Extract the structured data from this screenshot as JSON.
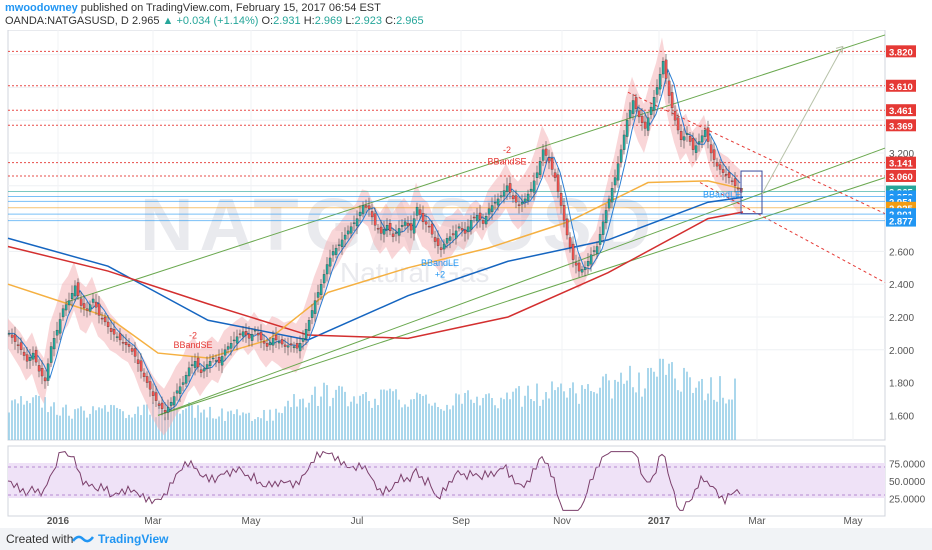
{
  "header": {
    "author": "mwoodowney",
    "published": "published on TradingView.com, February 15, 2017 06:54 EST",
    "symbol": "OANDA:NATGASUSD, D",
    "price": "2.965",
    "change": "+0.034 (+1.14%)",
    "o_label": "O:",
    "o_val": "2.931",
    "h_label": "H:",
    "h_val": "2.969",
    "l_label": "L:",
    "l_val": "2.923",
    "c_label": "C:",
    "c_val": "2.965"
  },
  "footer": {
    "created": "Created with",
    "brand": "TradingView",
    "logo_icon": "tradingview-logo-icon"
  },
  "watermark": {
    "symbol": "NATGASUSD",
    "name": "Natural Gas"
  },
  "colors": {
    "up": "#26a69a",
    "down": "#ef5350",
    "ema_blue": "#1565c0",
    "ma_red": "#d32f2f",
    "ma_orange": "#f5b041",
    "bb_fill": "#f4b5b8",
    "channel": "#6aa84f",
    "volume": "#8ecae6",
    "rsi": "#7b3f6b",
    "rsi_band": "#efe2f7",
    "hline": "#e53935",
    "price_tag": "#2196f3"
  },
  "chart_data": {
    "type": "candlestick",
    "symbol": "OANDA:NATGASUSD",
    "interval": "D",
    "last": {
      "open": 2.931,
      "high": 2.969,
      "low": 2.923,
      "close": 2.965
    },
    "ylim": [
      1.45,
      3.95
    ],
    "y_ticks": [
      "3.200",
      "2.600",
      "2.400",
      "2.200",
      "2.000",
      "1.800",
      "1.600"
    ],
    "x_ticks": [
      "2016",
      "Mar",
      "May",
      "Jul",
      "Sep",
      "Nov",
      "2017",
      "Mar",
      "May"
    ],
    "price_levels": [
      {
        "label": "3.820",
        "value": 3.82,
        "color": "#e53935"
      },
      {
        "label": "3.610",
        "value": 3.61,
        "color": "#e53935"
      },
      {
        "label": "3.461",
        "value": 3.461,
        "color": "#e53935"
      },
      {
        "label": "3.369",
        "value": 3.369,
        "color": "#e53935"
      },
      {
        "label": "3.141",
        "value": 3.141,
        "color": "#e53935"
      },
      {
        "label": "3.060",
        "value": 3.06,
        "color": "#e53935"
      },
      {
        "label": "2.965",
        "value": 2.965,
        "color": "#26a69a"
      },
      {
        "label": "2.958",
        "value": 2.935,
        "color": "#2196f3"
      },
      {
        "label": "2.951",
        "value": 2.905,
        "color": "#2196f3"
      },
      {
        "label": "2.925",
        "value": 2.866,
        "color": "#f39c12"
      },
      {
        "label": "2.901",
        "value": 2.827,
        "color": "#2196f3"
      },
      {
        "label": "2.877",
        "value": 2.788,
        "color": "#2196f3"
      }
    ],
    "close_path": [
      [
        0,
        2.1
      ],
      [
        6,
        2.05
      ],
      [
        12,
        2.0
      ],
      [
        18,
        1.93
      ],
      [
        24,
        1.98
      ],
      [
        30,
        1.87
      ],
      [
        36,
        1.81
      ],
      [
        42,
        2.02
      ],
      [
        48,
        2.12
      ],
      [
        54,
        2.25
      ],
      [
        60,
        2.3
      ],
      [
        66,
        2.39
      ],
      [
        72,
        2.27
      ],
      [
        78,
        2.24
      ],
      [
        84,
        2.31
      ],
      [
        90,
        2.21
      ],
      [
        96,
        2.17
      ],
      [
        102,
        2.11
      ],
      [
        108,
        2.08
      ],
      [
        114,
        2.04
      ],
      [
        120,
        2.02
      ],
      [
        126,
        1.96
      ],
      [
        132,
        1.87
      ],
      [
        138,
        1.8
      ],
      [
        144,
        1.72
      ],
      [
        150,
        1.66
      ],
      [
        156,
        1.62
      ],
      [
        162,
        1.68
      ],
      [
        168,
        1.75
      ],
      [
        174,
        1.8
      ],
      [
        180,
        1.89
      ],
      [
        186,
        1.93
      ],
      [
        192,
        1.86
      ],
      [
        198,
        1.91
      ],
      [
        204,
        1.95
      ],
      [
        210,
        1.92
      ],
      [
        216,
        2.0
      ],
      [
        222,
        2.04
      ],
      [
        228,
        2.08
      ],
      [
        234,
        2.11
      ],
      [
        240,
        2.07
      ],
      [
        246,
        2.12
      ],
      [
        252,
        2.06
      ],
      [
        258,
        2.02
      ],
      [
        264,
        2.07
      ],
      [
        270,
        2.05
      ],
      [
        276,
        2.02
      ],
      [
        282,
        2.03
      ],
      [
        288,
        2.01
      ],
      [
        294,
        2.07
      ],
      [
        300,
        2.18
      ],
      [
        306,
        2.3
      ],
      [
        312,
        2.4
      ],
      [
        318,
        2.52
      ],
      [
        324,
        2.6
      ],
      [
        330,
        2.64
      ],
      [
        336,
        2.7
      ],
      [
        342,
        2.75
      ],
      [
        348,
        2.8
      ],
      [
        354,
        2.88
      ],
      [
        360,
        2.86
      ],
      [
        366,
        2.76
      ],
      [
        372,
        2.71
      ],
      [
        378,
        2.76
      ],
      [
        384,
        2.69
      ],
      [
        390,
        2.74
      ],
      [
        396,
        2.78
      ],
      [
        402,
        2.73
      ],
      [
        408,
        2.87
      ],
      [
        414,
        2.78
      ],
      [
        420,
        2.75
      ],
      [
        426,
        2.66
      ],
      [
        432,
        2.61
      ],
      [
        438,
        2.68
      ],
      [
        444,
        2.7
      ],
      [
        450,
        2.75
      ],
      [
        456,
        2.71
      ],
      [
        462,
        2.79
      ],
      [
        468,
        2.82
      ],
      [
        474,
        2.77
      ],
      [
        480,
        2.86
      ],
      [
        486,
        2.9
      ],
      [
        492,
        2.94
      ],
      [
        498,
        3.0
      ],
      [
        504,
        2.92
      ],
      [
        510,
        2.88
      ],
      [
        516,
        2.92
      ],
      [
        522,
        2.98
      ],
      [
        528,
        3.08
      ],
      [
        534,
        3.22
      ],
      [
        540,
        3.15
      ],
      [
        546,
        3.05
      ],
      [
        552,
        2.88
      ],
      [
        558,
        2.7
      ],
      [
        564,
        2.55
      ],
      [
        570,
        2.48
      ],
      [
        576,
        2.5
      ],
      [
        582,
        2.58
      ],
      [
        588,
        2.63
      ],
      [
        594,
        2.78
      ],
      [
        600,
        2.92
      ],
      [
        606,
        3.05
      ],
      [
        612,
        3.22
      ],
      [
        618,
        3.4
      ],
      [
        624,
        3.52
      ],
      [
        630,
        3.42
      ],
      [
        636,
        3.35
      ],
      [
        642,
        3.48
      ],
      [
        648,
        3.6
      ],
      [
        654,
        3.76
      ],
      [
        660,
        3.55
      ],
      [
        666,
        3.4
      ],
      [
        672,
        3.28
      ],
      [
        678,
        3.32
      ],
      [
        684,
        3.22
      ],
      [
        690,
        3.27
      ],
      [
        696,
        3.34
      ],
      [
        702,
        3.2
      ],
      [
        708,
        3.12
      ],
      [
        714,
        3.08
      ],
      [
        720,
        3.05
      ],
      [
        726,
        3.0
      ],
      [
        732,
        2.96
      ]
    ],
    "moving_averages": [
      {
        "color": "#1565c0",
        "points": [
          [
            0,
            2.68
          ],
          [
            100,
            2.51
          ],
          [
            200,
            2.18
          ],
          [
            300,
            2.06
          ],
          [
            400,
            2.33
          ],
          [
            500,
            2.54
          ],
          [
            600,
            2.67
          ],
          [
            700,
            2.9
          ],
          [
            735,
            2.93
          ]
        ]
      },
      {
        "color": "#d32f2f",
        "points": [
          [
            0,
            2.63
          ],
          [
            100,
            2.48
          ],
          [
            200,
            2.28
          ],
          [
            300,
            2.09
          ],
          [
            400,
            2.07
          ],
          [
            500,
            2.2
          ],
          [
            600,
            2.47
          ],
          [
            700,
            2.8
          ],
          [
            735,
            2.84
          ]
        ]
      },
      {
        "color": "#f5b041",
        "points": [
          [
            0,
            2.4
          ],
          [
            60,
            2.28
          ],
          [
            100,
            2.2
          ],
          [
            150,
            1.98
          ],
          [
            200,
            1.95
          ],
          [
            260,
            2.06
          ],
          [
            320,
            2.35
          ],
          [
            400,
            2.5
          ],
          [
            480,
            2.62
          ],
          [
            560,
            2.78
          ],
          [
            640,
            3.02
          ],
          [
            700,
            3.03
          ],
          [
            735,
            2.98
          ]
        ]
      }
    ],
    "rsi": {
      "levels": [
        "75.0000",
        "50.0000",
        "25.0000"
      ],
      "upper": 70,
      "lower": 30
    },
    "annotations": [
      {
        "text": "BBandSE",
        "color": "#e53935",
        "x": 185,
        "y": 2.01
      },
      {
        "text": "-2",
        "color": "#e53935",
        "x": 185,
        "y": 2.07
      },
      {
        "text": "BBandSE",
        "color": "#e53935",
        "x": 499,
        "y": 3.13
      },
      {
        "text": "-2",
        "color": "#e53935",
        "x": 499,
        "y": 3.2
      },
      {
        "text": "BBandLE",
        "color": "#2196f3",
        "x": 432,
        "y": 2.51
      },
      {
        "text": "+2",
        "color": "#2196f3",
        "x": 432,
        "y": 2.44
      },
      {
        "text": "BBandLE",
        "color": "#2196f3",
        "x": 714,
        "y": 2.93
      }
    ]
  }
}
